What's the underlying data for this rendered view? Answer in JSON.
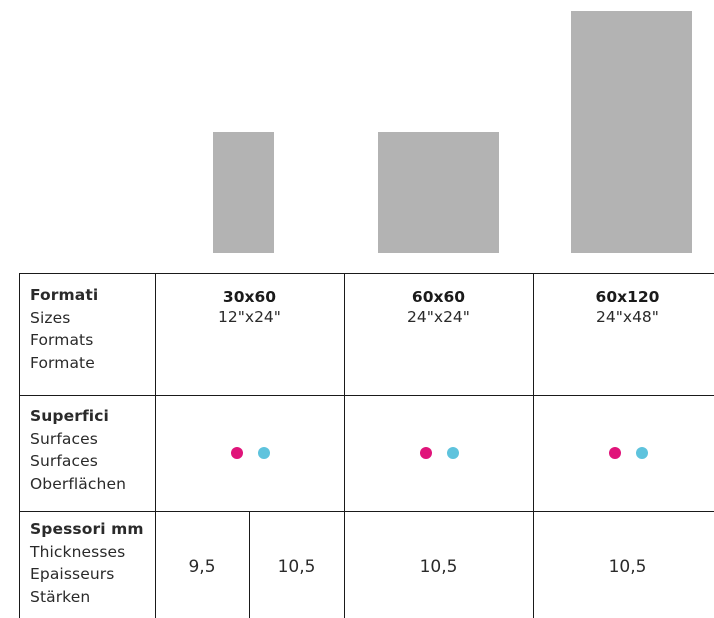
{
  "colors": {
    "tile_gray": "#b3b3b3",
    "surface_dot_1": "#e0147a",
    "surface_dot_2": "#5ec3dd"
  },
  "rows": {
    "sizes": {
      "title": "Formati",
      "lines": [
        "Sizes",
        "Formats",
        "Formate"
      ]
    },
    "surfaces": {
      "title": "Superfici",
      "lines": [
        "Surfaces",
        "Surfaces",
        "Oberflächen"
      ]
    },
    "thickness": {
      "title": "Spessori mm",
      "lines": [
        "Thicknesses",
        "Epaisseurs",
        "Stärken"
      ]
    }
  },
  "columns": [
    {
      "name": "30x60",
      "inches": "12\"x24\"",
      "thickness": [
        "9,5",
        "10,5"
      ]
    },
    {
      "name": "60x60",
      "inches": "24\"x24\"",
      "thickness": [
        "10,5"
      ]
    },
    {
      "name": "60x120",
      "inches": "24\"x48\"",
      "thickness": [
        "10,5"
      ]
    }
  ]
}
